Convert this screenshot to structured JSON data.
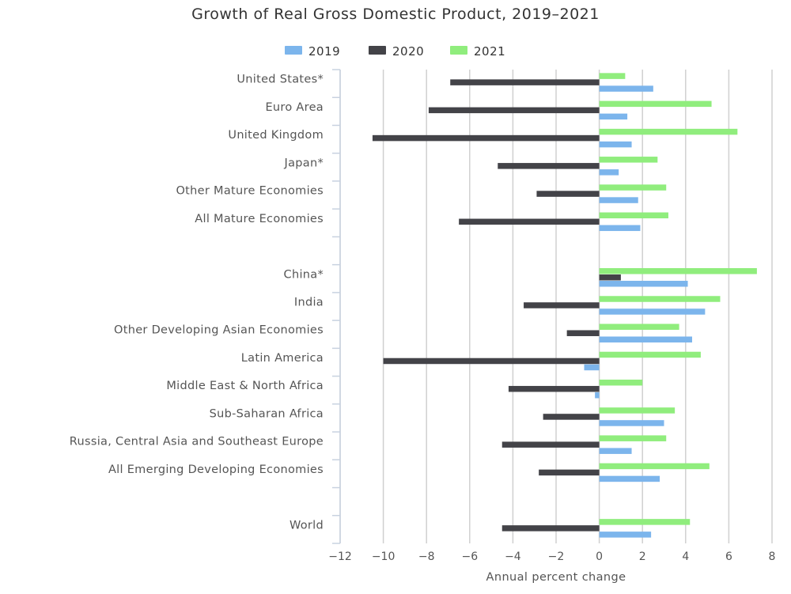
{
  "chart_data": {
    "type": "bar",
    "orientation": "horizontal",
    "title": "Growth of Real Gross Domestic Product, 2019–2021",
    "xlabel": "Annual percent change",
    "ylabel": "",
    "xlim": [
      -12,
      8
    ],
    "xticks": [
      -12,
      -10,
      -8,
      -6,
      -4,
      -2,
      0,
      2,
      4,
      6,
      8
    ],
    "xtick_labels": [
      "−12",
      "−10",
      "−8",
      "−6",
      "−4",
      "−2",
      "0",
      "2",
      "4",
      "6",
      "8"
    ],
    "grid": true,
    "legend_position": "top-center",
    "categories": [
      "United States*",
      "Euro Area",
      "United Kingdom",
      "Japan*",
      "Other Mature Economies",
      "All Mature Economies",
      "",
      "China*",
      "India",
      "Other Developing Asian Economies",
      "Latin America",
      "Middle East & North Africa",
      "Sub-Saharan Africa",
      "Russia, Central Asia and Southeast Europe",
      "All Emerging Developing Economies",
      "",
      "World"
    ],
    "series": [
      {
        "name": "2019",
        "color": "#7cb5ec",
        "values": [
          2.5,
          1.3,
          1.5,
          0.9,
          1.8,
          1.9,
          null,
          4.1,
          4.9,
          4.3,
          -0.7,
          -0.2,
          3.0,
          1.5,
          2.8,
          null,
          2.4
        ]
      },
      {
        "name": "2020",
        "color": "#434348",
        "values": [
          -6.9,
          -7.9,
          -10.5,
          -4.7,
          -2.9,
          -6.5,
          null,
          1.0,
          -3.5,
          -1.5,
          -10.0,
          -4.2,
          -2.6,
          -4.5,
          -2.8,
          null,
          -4.5
        ]
      },
      {
        "name": "2021",
        "color": "#90ed7d",
        "values": [
          1.2,
          5.2,
          6.4,
          2.7,
          3.1,
          3.2,
          null,
          7.3,
          5.6,
          3.7,
          4.7,
          2.0,
          3.5,
          3.1,
          5.1,
          null,
          4.2
        ]
      }
    ]
  }
}
